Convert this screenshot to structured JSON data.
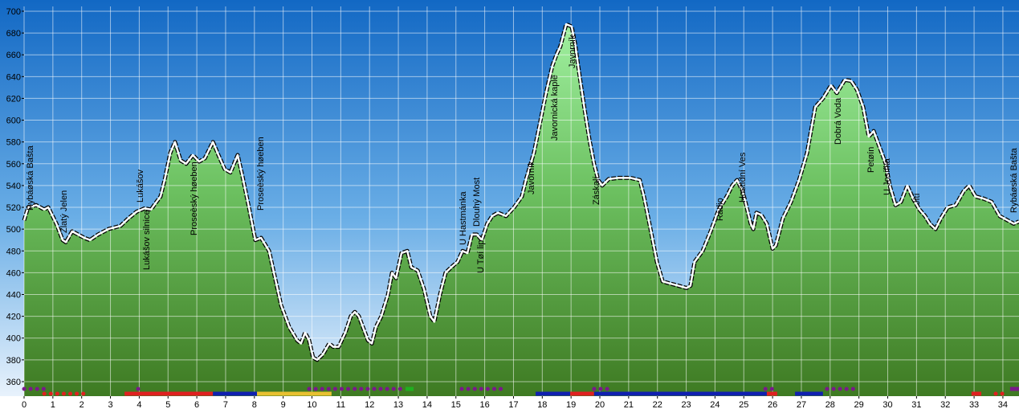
{
  "chart_data": {
    "type": "area",
    "x": [
      0,
      0.14,
      0.42,
      0.7,
      0.84,
      1.12,
      1.34,
      1.45,
      1.67,
      1.81,
      2.09,
      2.29,
      2.57,
      2.93,
      3.35,
      3.63,
      3.91,
      4.18,
      4.41,
      4.6,
      4.74,
      4.88,
      5.08,
      5.24,
      5.44,
      5.63,
      5.86,
      6.08,
      6.28,
      6.56,
      6.75,
      6.97,
      7.17,
      7.42,
      7.59,
      7.81,
      8.03,
      8.23,
      8.51,
      8.93,
      9.21,
      9.48,
      9.62,
      9.76,
      9.9,
      10.04,
      10.18,
      10.38,
      10.6,
      10.74,
      10.93,
      11.16,
      11.35,
      11.49,
      11.63,
      11.77,
      11.94,
      12.08,
      12.22,
      12.41,
      12.64,
      12.78,
      12.92,
      13.11,
      13.31,
      13.45,
      13.67,
      13.89,
      14.11,
      14.25,
      14.45,
      14.64,
      14.84,
      15.06,
      15.23,
      15.4,
      15.56,
      15.73,
      15.9,
      16.09,
      16.26,
      16.46,
      16.74,
      17.02,
      17.29,
      17.43,
      17.71,
      17.94,
      18.13,
      18.35,
      18.49,
      18.63,
      18.83,
      19.02,
      19.14,
      19.3,
      19.47,
      19.64,
      19.8,
      19.94,
      20.08,
      20.31,
      20.64,
      21.06,
      21.39,
      21.53,
      21.76,
      21.98,
      22.18,
      22.45,
      22.73,
      23.01,
      23.15,
      23.29,
      23.57,
      23.85,
      24.13,
      24.41,
      24.6,
      24.77,
      24.96,
      25.1,
      25.24,
      25.33,
      25.44,
      25.61,
      25.8,
      26.0,
      26.11,
      26.36,
      26.64,
      26.92,
      27.2,
      27.48,
      27.75,
      28.03,
      28.23,
      28.51,
      28.73,
      28.93,
      29.15,
      29.34,
      29.51,
      29.65,
      29.79,
      29.93,
      30.07,
      30.27,
      30.46,
      30.68,
      30.88,
      31.1,
      31.3,
      31.46,
      31.66,
      31.85,
      32.08,
      32.36,
      32.64,
      32.83,
      33.05,
      33.33,
      33.61,
      33.89,
      34.17,
      34.38,
      34.56
    ],
    "values": [
      508,
      520,
      522,
      518,
      520,
      505,
      490,
      488,
      498,
      496,
      492,
      490,
      495,
      500,
      503,
      510,
      516,
      519,
      518,
      525,
      530,
      545,
      570,
      580,
      563,
      560,
      568,
      562,
      565,
      580,
      568,
      555,
      552,
      568,
      548,
      520,
      490,
      492,
      480,
      430,
      410,
      398,
      395,
      405,
      398,
      382,
      380,
      385,
      395,
      392,
      392,
      405,
      420,
      424,
      420,
      410,
      398,
      395,
      410,
      420,
      440,
      460,
      455,
      478,
      480,
      465,
      462,
      445,
      420,
      415,
      440,
      460,
      465,
      470,
      480,
      478,
      495,
      495,
      490,
      505,
      512,
      515,
      512,
      520,
      530,
      545,
      570,
      600,
      625,
      650,
      660,
      668,
      688,
      686,
      670,
      640,
      610,
      582,
      560,
      545,
      540,
      546,
      547,
      547,
      545,
      530,
      500,
      470,
      452,
      450,
      448,
      446,
      448,
      470,
      480,
      498,
      518,
      530,
      540,
      545,
      535,
      520,
      505,
      500,
      515,
      513,
      505,
      482,
      485,
      510,
      525,
      545,
      570,
      612,
      620,
      632,
      625,
      637,
      636,
      628,
      612,
      585,
      590,
      580,
      570,
      560,
      540,
      522,
      525,
      540,
      528,
      518,
      512,
      505,
      500,
      510,
      520,
      522,
      535,
      540,
      530,
      528,
      525,
      512,
      508,
      505,
      507
    ],
    "xlim": [
      0,
      34.56
    ],
    "ylim": [
      346.7,
      704.4
    ],
    "xticks": [
      0,
      1,
      2,
      3,
      4,
      5,
      6,
      7,
      8,
      9,
      10,
      11,
      12,
      13,
      14,
      15,
      16,
      17,
      18,
      19,
      20,
      21,
      22,
      23,
      24,
      25,
      26,
      27,
      28,
      29,
      30,
      31,
      32,
      33,
      34
    ],
    "yticks": [
      360,
      380,
      400,
      420,
      440,
      460,
      480,
      500,
      520,
      540,
      560,
      580,
      600,
      620,
      640,
      660,
      680,
      700
    ],
    "grid": true,
    "annotations": [
      {
        "text": "Rybáøská Bašta",
        "x": 0.2
      },
      {
        "text": "Zlatý Jelen",
        "x": 1.37
      },
      {
        "text": "Lukášov",
        "x": 4.02
      },
      {
        "text": "Lukášov silnice",
        "x": 4.24
      },
      {
        "text": "Proseèský høeben",
        "x": 5.89
      },
      {
        "text": "Proseèský høeben",
        "x": 8.2
      },
      {
        "text": "U Hastmánka",
        "x": 15.23
      },
      {
        "text": "Dlouhý Most",
        "x": 15.71
      },
      {
        "text": "U Tøí lip",
        "x": 15.85
      },
      {
        "text": "Javorník",
        "x": 17.6
      },
      {
        "text": "Javornická kaple",
        "x": 18.41
      },
      {
        "text": "Javorník",
        "x": 19.02
      },
      {
        "text": "Záskalí",
        "x": 19.86
      },
      {
        "text": "Rádio",
        "x": 24.16
      },
      {
        "text": "Hostìdní Ves",
        "x": 24.94
      },
      {
        "text": "Dobrá Voda",
        "x": 28.26
      },
      {
        "text": "Petøín",
        "x": 29.4
      },
      {
        "text": "U Josífka",
        "x": 29.96
      },
      {
        "text": "Jítì",
        "x": 30.99
      },
      {
        "text": "Rybáøská Bašta",
        "x": 34.36
      }
    ],
    "segments": [
      {
        "from": 0,
        "to": 0.78,
        "color": "#7a1a8a",
        "row": 1,
        "dotted": true
      },
      {
        "from": 3.96,
        "to": 4.18,
        "color": "#7a1a8a",
        "row": 1,
        "dotted": true
      },
      {
        "from": 9.9,
        "to": 13.19,
        "color": "#7a1a8a",
        "row": 1,
        "dotted": true
      },
      {
        "from": 13.25,
        "to": 13.53,
        "color": "#20b020",
        "row": 1,
        "dotted": false
      },
      {
        "from": 15.2,
        "to": 16.6,
        "color": "#7a1a8a",
        "row": 1,
        "dotted": true
      },
      {
        "from": 19.8,
        "to": 20.36,
        "color": "#7a1a8a",
        "row": 1,
        "dotted": true
      },
      {
        "from": 25.75,
        "to": 26.0,
        "color": "#7a1a8a",
        "row": 1,
        "dotted": true
      },
      {
        "from": 27.89,
        "to": 29.01,
        "color": "#7a1a8a",
        "row": 1,
        "dotted": true
      },
      {
        "from": 34.25,
        "to": 34.56,
        "color": "#7a1a8a",
        "row": 1,
        "dotted": false
      },
      {
        "from": 0.7,
        "to": 2.09,
        "color": "#e02020",
        "row": 2,
        "dotted": true
      },
      {
        "from": 3.49,
        "to": 6.56,
        "color": "#e02020",
        "row": 2,
        "dotted": false
      },
      {
        "from": 6.56,
        "to": 8.09,
        "color": "#1020b0",
        "row": 2,
        "dotted": false
      },
      {
        "from": 8.09,
        "to": 10.68,
        "color": "#e8c030",
        "row": 2,
        "dotted": false
      },
      {
        "from": 17.77,
        "to": 18.97,
        "color": "#1020b0",
        "row": 2,
        "dotted": false
      },
      {
        "from": 18.97,
        "to": 19.8,
        "color": "#e02020",
        "row": 2,
        "dotted": false
      },
      {
        "from": 19.8,
        "to": 25.8,
        "color": "#1020b0",
        "row": 2,
        "dotted": false
      },
      {
        "from": 25.8,
        "to": 26.16,
        "color": "#e02020",
        "row": 2,
        "dotted": false
      },
      {
        "from": 26.78,
        "to": 27.75,
        "color": "#1020b0",
        "row": 2,
        "dotted": false
      },
      {
        "from": 32.91,
        "to": 33.25,
        "color": "#e02020",
        "row": 2,
        "dotted": false
      },
      {
        "from": 33.75,
        "to": 34.17,
        "color": "#e02020",
        "row": 2,
        "dotted": true
      }
    ]
  }
}
